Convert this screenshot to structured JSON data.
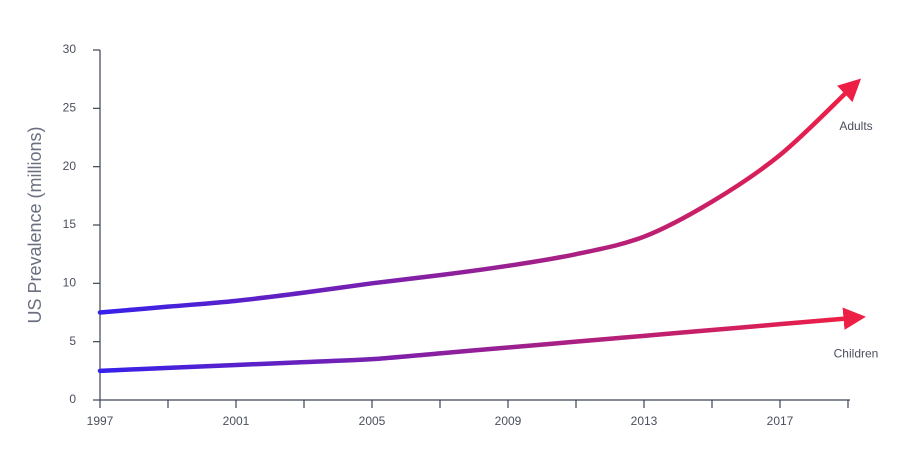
{
  "chart_data": {
    "type": "line",
    "y_label": "US Prevalence (millions)",
    "x": [
      1997,
      1999,
      2001,
      2003,
      2005,
      2007,
      2009,
      2011,
      2013,
      2015,
      2017,
      2019
    ],
    "series": [
      {
        "name": "Adults",
        "values": [
          7.5,
          8,
          8.5,
          9.2,
          10,
          10.7,
          11.5,
          12.5,
          14,
          17,
          21,
          26.5
        ]
      },
      {
        "name": "Children",
        "values": [
          2.5,
          2.75,
          3,
          3.25,
          3.5,
          4,
          4.5,
          5,
          5.5,
          6,
          6.5,
          7
        ]
      }
    ],
    "gradient": [
      "#3621ea",
      "#ee1f45"
    ],
    "xlim": [
      1997,
      2019
    ],
    "xticks": [
      1997,
      2001,
      2005,
      2009,
      2013,
      2017
    ],
    "xminorticks": [
      1999,
      2003,
      2007,
      2011,
      2015,
      2019
    ],
    "ylim": [
      0,
      30
    ],
    "yticks": [
      0,
      5,
      10,
      15,
      20,
      25,
      30
    ]
  }
}
